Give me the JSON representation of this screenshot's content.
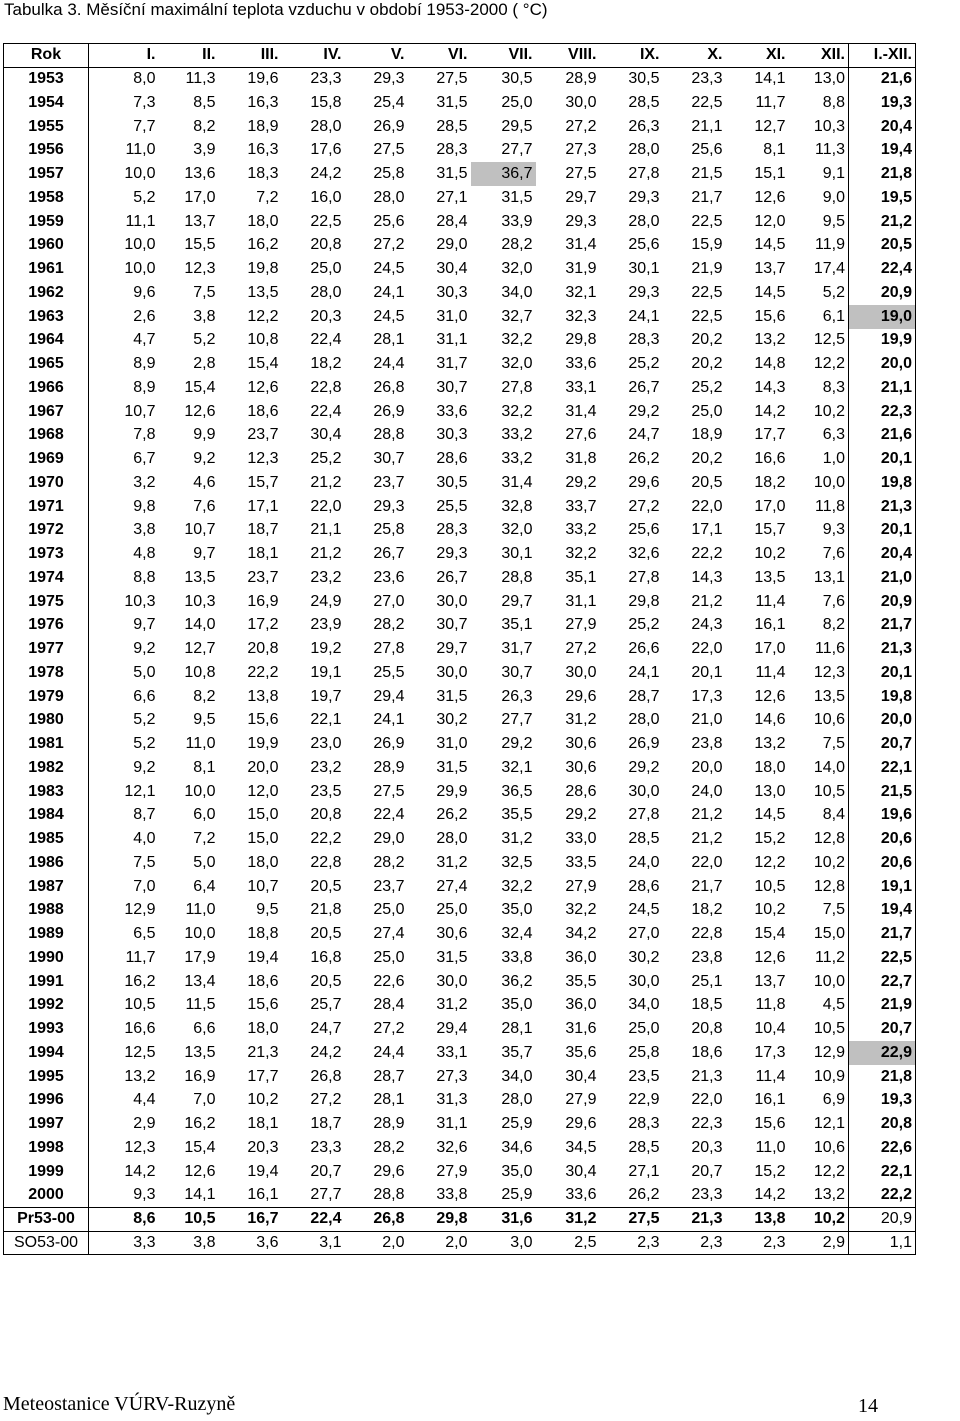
{
  "title": "Tabulka 3. Měsíční maximální teplota vzduchu v období 1953-2000 ( °C)",
  "table": {
    "headers": [
      "Rok",
      "I.",
      "II.",
      "III.",
      "IV.",
      "V.",
      "VI.",
      "VII.",
      "VIII.",
      "IX.",
      "X.",
      "XI.",
      "XII.",
      "I.-XII."
    ],
    "rows": [
      [
        "1953",
        "8,0",
        "11,3",
        "19,6",
        "23,3",
        "29,3",
        "27,5",
        "30,5",
        "28,9",
        "30,5",
        "23,3",
        "14,1",
        "13,0",
        "21,6"
      ],
      [
        "1954",
        "7,3",
        "8,5",
        "16,3",
        "15,8",
        "25,4",
        "31,5",
        "25,0",
        "30,0",
        "28,5",
        "22,5",
        "11,7",
        "8,8",
        "19,3"
      ],
      [
        "1955",
        "7,7",
        "8,2",
        "18,9",
        "28,0",
        "26,9",
        "28,5",
        "29,5",
        "27,2",
        "26,3",
        "21,1",
        "12,7",
        "10,3",
        "20,4"
      ],
      [
        "1956",
        "11,0",
        "3,9",
        "16,3",
        "17,6",
        "27,5",
        "28,3",
        "27,7",
        "27,3",
        "28,0",
        "25,6",
        "8,1",
        "11,3",
        "19,4"
      ],
      [
        "1957",
        "10,0",
        "13,6",
        "18,3",
        "24,2",
        "25,8",
        "31,5",
        "36,7",
        "27,5",
        "27,8",
        "21,5",
        "15,1",
        "9,1",
        "21,8"
      ],
      [
        "1958",
        "5,2",
        "17,0",
        "7,2",
        "16,0",
        "28,0",
        "27,1",
        "31,5",
        "29,7",
        "29,3",
        "21,7",
        "12,6",
        "9,0",
        "19,5"
      ],
      [
        "1959",
        "11,1",
        "13,7",
        "18,0",
        "22,5",
        "25,6",
        "28,4",
        "33,9",
        "29,3",
        "28,0",
        "22,5",
        "12,0",
        "9,5",
        "21,2"
      ],
      [
        "1960",
        "10,0",
        "15,5",
        "16,2",
        "20,8",
        "27,2",
        "29,0",
        "28,2",
        "31,4",
        "25,6",
        "15,9",
        "14,5",
        "11,9",
        "20,5"
      ],
      [
        "1961",
        "10,0",
        "12,3",
        "19,8",
        "25,0",
        "24,5",
        "30,4",
        "32,0",
        "31,9",
        "30,1",
        "21,9",
        "13,7",
        "17,4",
        "22,4"
      ],
      [
        "1962",
        "9,6",
        "7,5",
        "13,5",
        "28,0",
        "24,1",
        "30,3",
        "34,0",
        "32,1",
        "29,3",
        "22,5",
        "14,5",
        "5,2",
        "20,9"
      ],
      [
        "1963",
        "2,6",
        "3,8",
        "12,2",
        "20,3",
        "24,5",
        "31,0",
        "32,7",
        "32,3",
        "24,1",
        "22,5",
        "15,6",
        "6,1",
        "19,0"
      ],
      [
        "1964",
        "4,7",
        "5,2",
        "10,8",
        "22,4",
        "28,1",
        "31,1",
        "32,2",
        "29,8",
        "28,3",
        "20,2",
        "13,2",
        "12,5",
        "19,9"
      ],
      [
        "1965",
        "8,9",
        "2,8",
        "15,4",
        "18,2",
        "24,4",
        "31,7",
        "32,0",
        "33,6",
        "25,2",
        "20,2",
        "14,8",
        "12,2",
        "20,0"
      ],
      [
        "1966",
        "8,9",
        "15,4",
        "12,6",
        "22,8",
        "26,8",
        "30,7",
        "27,8",
        "33,1",
        "26,7",
        "25,2",
        "14,3",
        "8,3",
        "21,1"
      ],
      [
        "1967",
        "10,7",
        "12,6",
        "18,6",
        "22,4",
        "26,9",
        "33,6",
        "32,2",
        "31,4",
        "29,2",
        "25,0",
        "14,2",
        "10,2",
        "22,3"
      ],
      [
        "1968",
        "7,8",
        "9,9",
        "23,7",
        "30,4",
        "28,8",
        "30,3",
        "33,2",
        "27,6",
        "24,7",
        "18,9",
        "17,7",
        "6,3",
        "21,6"
      ],
      [
        "1969",
        "6,7",
        "9,2",
        "12,3",
        "25,2",
        "30,7",
        "28,6",
        "33,2",
        "31,8",
        "26,2",
        "20,2",
        "16,6",
        "1,0",
        "20,1"
      ],
      [
        "1970",
        "3,2",
        "4,6",
        "15,7",
        "21,2",
        "23,7",
        "30,5",
        "31,4",
        "29,2",
        "29,6",
        "20,5",
        "18,2",
        "10,0",
        "19,8"
      ],
      [
        "1971",
        "9,8",
        "7,6",
        "17,1",
        "22,0",
        "29,3",
        "25,5",
        "32,8",
        "33,7",
        "27,2",
        "22,0",
        "17,0",
        "11,8",
        "21,3"
      ],
      [
        "1972",
        "3,8",
        "10,7",
        "18,7",
        "21,1",
        "25,8",
        "28,3",
        "32,0",
        "33,2",
        "25,6",
        "17,1",
        "15,7",
        "9,3",
        "20,1"
      ],
      [
        "1973",
        "4,8",
        "9,7",
        "18,1",
        "21,2",
        "26,7",
        "29,3",
        "30,1",
        "32,2",
        "32,6",
        "22,2",
        "10,2",
        "7,6",
        "20,4"
      ],
      [
        "1974",
        "8,8",
        "13,5",
        "23,7",
        "23,2",
        "23,6",
        "26,7",
        "28,8",
        "35,1",
        "27,8",
        "14,3",
        "13,5",
        "13,1",
        "21,0"
      ],
      [
        "1975",
        "10,3",
        "10,3",
        "16,9",
        "24,9",
        "27,0",
        "30,0",
        "29,7",
        "31,1",
        "29,8",
        "21,2",
        "11,4",
        "7,6",
        "20,9"
      ],
      [
        "1976",
        "9,7",
        "14,0",
        "17,2",
        "23,9",
        "28,2",
        "30,7",
        "35,1",
        "27,9",
        "25,2",
        "24,3",
        "16,1",
        "8,2",
        "21,7"
      ],
      [
        "1977",
        "9,2",
        "12,7",
        "20,8",
        "19,2",
        "27,8",
        "29,7",
        "31,7",
        "27,2",
        "26,6",
        "22,0",
        "17,0",
        "11,6",
        "21,3"
      ],
      [
        "1978",
        "5,0",
        "10,8",
        "22,2",
        "19,1",
        "25,5",
        "30,0",
        "30,7",
        "30,0",
        "24,1",
        "20,1",
        "11,4",
        "12,3",
        "20,1"
      ],
      [
        "1979",
        "6,6",
        "8,2",
        "13,8",
        "19,7",
        "29,4",
        "31,5",
        "26,3",
        "29,6",
        "28,7",
        "17,3",
        "12,6",
        "13,5",
        "19,8"
      ],
      [
        "1980",
        "5,2",
        "9,5",
        "15,6",
        "22,1",
        "24,1",
        "30,2",
        "27,7",
        "31,2",
        "28,0",
        "21,0",
        "14,6",
        "10,6",
        "20,0"
      ],
      [
        "1981",
        "5,2",
        "11,0",
        "19,9",
        "23,0",
        "26,9",
        "31,0",
        "29,2",
        "30,6",
        "26,9",
        "23,8",
        "13,2",
        "7,5",
        "20,7"
      ],
      [
        "1982",
        "9,2",
        "8,1",
        "20,0",
        "23,2",
        "28,9",
        "31,5",
        "32,1",
        "30,6",
        "29,2",
        "20,0",
        "18,0",
        "14,0",
        "22,1"
      ],
      [
        "1983",
        "12,1",
        "10,0",
        "12,0",
        "23,5",
        "27,5",
        "29,9",
        "36,5",
        "28,6",
        "30,0",
        "24,0",
        "13,0",
        "10,5",
        "21,5"
      ],
      [
        "1984",
        "8,7",
        "6,0",
        "15,0",
        "20,8",
        "22,4",
        "26,2",
        "35,5",
        "29,2",
        "27,8",
        "21,2",
        "14,5",
        "8,4",
        "19,6"
      ],
      [
        "1985",
        "4,0",
        "7,2",
        "15,0",
        "22,2",
        "29,0",
        "28,0",
        "31,2",
        "33,0",
        "28,5",
        "21,2",
        "15,2",
        "12,8",
        "20,6"
      ],
      [
        "1986",
        "7,5",
        "5,0",
        "18,0",
        "22,8",
        "28,2",
        "31,2",
        "32,5",
        "33,5",
        "24,0",
        "22,0",
        "12,2",
        "10,2",
        "20,6"
      ],
      [
        "1987",
        "7,0",
        "6,4",
        "10,7",
        "20,5",
        "23,7",
        "27,4",
        "32,2",
        "27,9",
        "28,6",
        "21,7",
        "10,5",
        "12,8",
        "19,1"
      ],
      [
        "1988",
        "12,9",
        "11,0",
        "9,5",
        "21,8",
        "25,0",
        "25,0",
        "35,0",
        "32,2",
        "24,5",
        "18,2",
        "10,2",
        "7,5",
        "19,4"
      ],
      [
        "1989",
        "6,5",
        "10,0",
        "18,8",
        "20,5",
        "27,4",
        "30,6",
        "32,4",
        "34,2",
        "27,0",
        "22,8",
        "15,4",
        "15,0",
        "21,7"
      ],
      [
        "1990",
        "11,7",
        "17,9",
        "19,4",
        "16,8",
        "25,0",
        "31,5",
        "33,8",
        "36,0",
        "30,2",
        "23,8",
        "12,6",
        "11,2",
        "22,5"
      ],
      [
        "1991",
        "16,2",
        "13,4",
        "18,6",
        "20,5",
        "22,6",
        "30,0",
        "36,2",
        "35,5",
        "30,0",
        "25,1",
        "13,7",
        "10,0",
        "22,7"
      ],
      [
        "1992",
        "10,5",
        "11,5",
        "15,6",
        "25,7",
        "28,4",
        "31,2",
        "35,0",
        "36,0",
        "34,0",
        "18,5",
        "11,8",
        "4,5",
        "21,9"
      ],
      [
        "1993",
        "16,6",
        "6,6",
        "18,0",
        "24,7",
        "27,2",
        "29,4",
        "28,1",
        "31,6",
        "25,0",
        "20,8",
        "10,4",
        "10,5",
        "20,7"
      ],
      [
        "1994",
        "12,5",
        "13,5",
        "21,3",
        "24,2",
        "24,4",
        "33,1",
        "35,7",
        "35,6",
        "25,8",
        "18,6",
        "17,3",
        "12,9",
        "22,9"
      ],
      [
        "1995",
        "13,2",
        "16,9",
        "17,7",
        "26,8",
        "28,7",
        "27,3",
        "34,0",
        "30,4",
        "23,5",
        "21,3",
        "11,4",
        "10,9",
        "21,8"
      ],
      [
        "1996",
        "4,4",
        "7,0",
        "10,2",
        "27,2",
        "28,1",
        "31,3",
        "28,0",
        "27,9",
        "22,9",
        "22,0",
        "16,1",
        "6,9",
        "19,3"
      ],
      [
        "1997",
        "2,9",
        "16,2",
        "18,1",
        "18,7",
        "28,9",
        "31,1",
        "25,9",
        "29,6",
        "28,3",
        "22,3",
        "15,6",
        "12,1",
        "20,8"
      ],
      [
        "1998",
        "12,3",
        "15,4",
        "20,3",
        "23,3",
        "28,2",
        "32,6",
        "34,6",
        "34,5",
        "28,5",
        "20,3",
        "11,0",
        "10,6",
        "22,6"
      ],
      [
        "1999",
        "14,2",
        "12,6",
        "19,4",
        "20,7",
        "29,6",
        "27,9",
        "35,0",
        "30,4",
        "27,1",
        "20,7",
        "15,2",
        "12,2",
        "22,1"
      ],
      [
        "2000",
        "9,3",
        "14,1",
        "16,1",
        "27,7",
        "28,8",
        "33,8",
        "25,9",
        "33,6",
        "26,2",
        "23,3",
        "14,2",
        "13,2",
        "22,2"
      ]
    ],
    "footer_rows": [
      [
        "Pr53-00",
        "8,6",
        "10,5",
        "16,7",
        "22,4",
        "26,8",
        "29,8",
        "31,6",
        "31,2",
        "27,5",
        "21,3",
        "13,8",
        "10,2",
        "20,9"
      ],
      [
        "SO53-00",
        "3,3",
        "3,8",
        "3,6",
        "3,1",
        "2,0",
        "2,0",
        "3,0",
        "2,5",
        "2,3",
        "2,3",
        "2,3",
        "2,9",
        "1,1"
      ]
    ],
    "highlighted_cells": [
      {
        "row": 4,
        "col": 7
      },
      {
        "row": 10,
        "col": 13
      },
      {
        "row": 41,
        "col": 13
      }
    ],
    "highlight_color": "#c0c0c0"
  },
  "footer": {
    "left": "Meteostanice VÚRV-Ruzyně",
    "page_number": "14"
  }
}
